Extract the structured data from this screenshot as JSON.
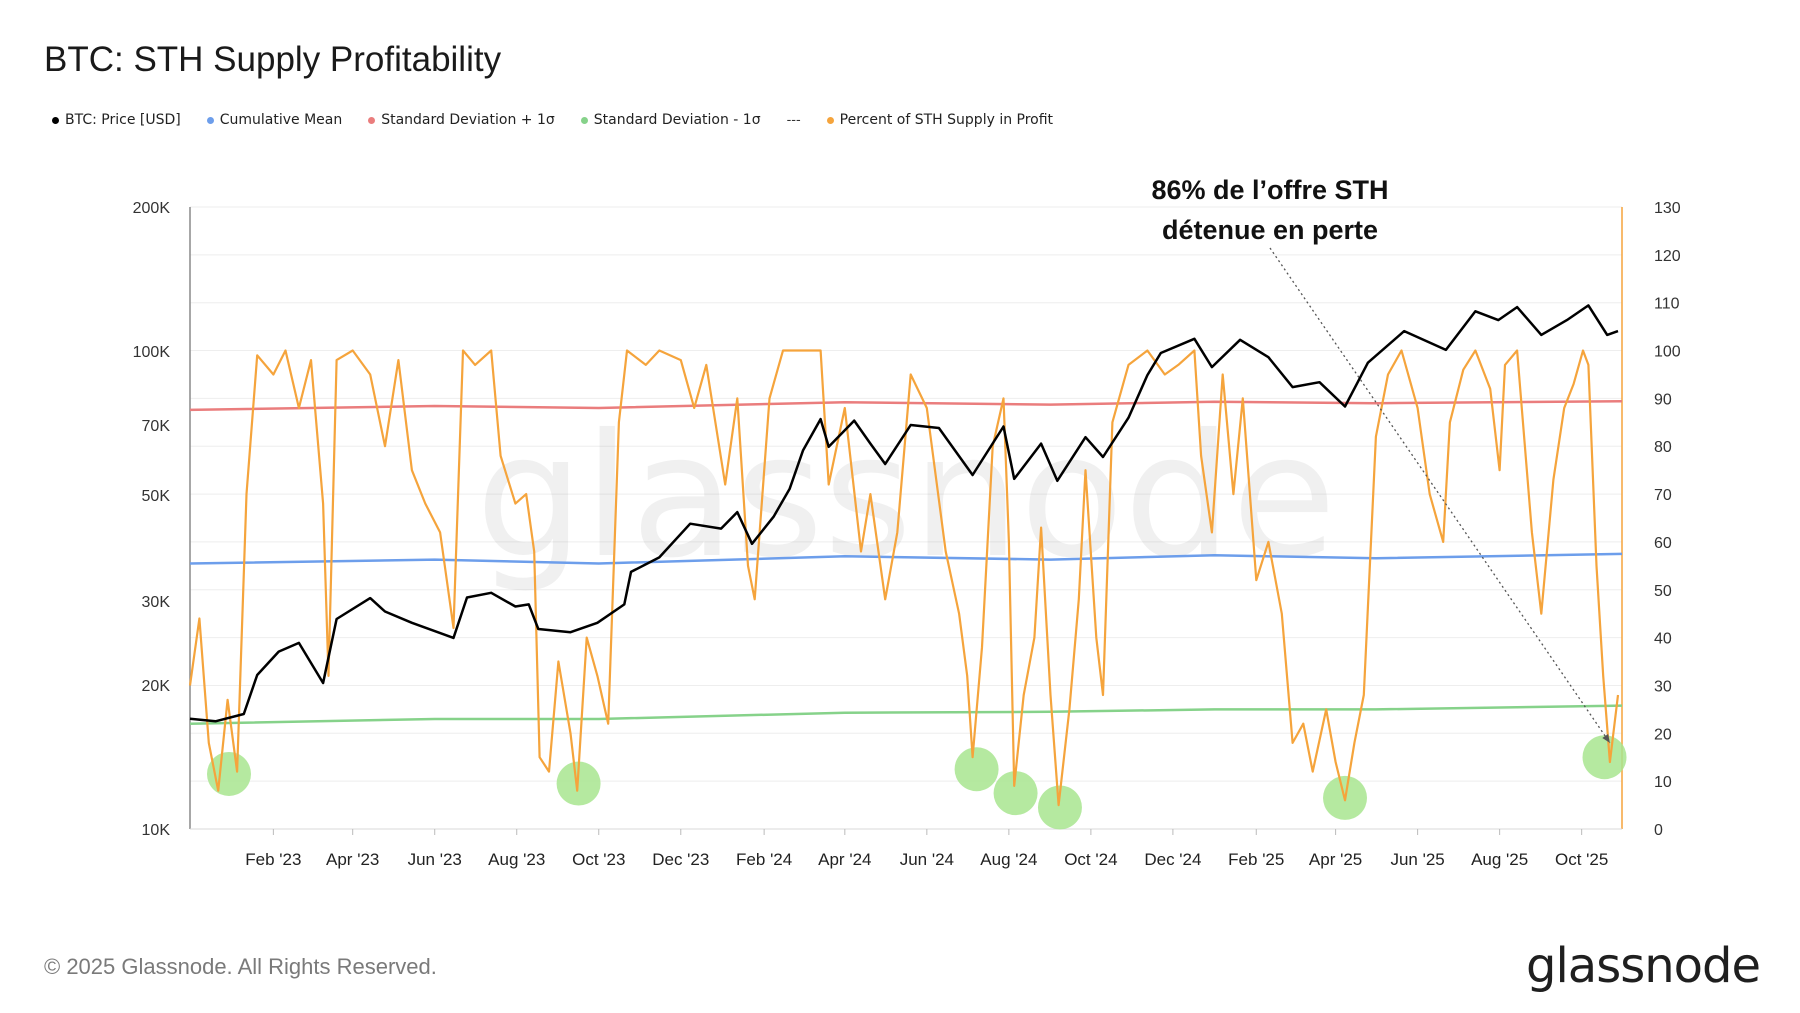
{
  "title": "BTC: STH Supply Profitability",
  "legend": [
    {
      "label": "BTC: Price [USD]",
      "color": "#000000"
    },
    {
      "label": "Cumulative Mean",
      "color": "#6d9eeb"
    },
    {
      "label": "Standard Deviation + 1σ",
      "color": "#ea7d7d"
    },
    {
      "label": "Standard Deviation - 1σ",
      "color": "#86d28a"
    },
    {
      "label": "Percent of STH Supply in Profit",
      "color": "#f5a43c"
    }
  ],
  "legend_separator": "---",
  "annotation": {
    "line1": "86% de l’offre STH",
    "line2": "détenue en perte"
  },
  "watermark": "glassnode",
  "footer": "© 2025 Glassnode. All Rights Reserved.",
  "brand": "glassnode",
  "colors": {
    "price": "#000000",
    "mean": "#6d9eeb",
    "upper": "#ea7d7d",
    "lower": "#86d28a",
    "profit": "#f5a43c",
    "highlight": "#a8e58f"
  },
  "chart_data": {
    "type": "line",
    "title": "BTC: STH Supply Profitability",
    "x_ticks": [
      "Feb '23",
      "Apr '23",
      "Jun '23",
      "Aug '23",
      "Oct '23",
      "Dec '23",
      "Feb '24",
      "Apr '24",
      "Jun '24",
      "Aug '24",
      "Oct '24",
      "Dec '24",
      "Feb '25",
      "Apr '25",
      "Jun '25",
      "Aug '25",
      "Oct '25"
    ],
    "x_range": [
      "2022-12-01",
      "2025-10-31"
    ],
    "y_left": {
      "scale": "log",
      "ticks": [
        "10K",
        "20K",
        "30K",
        "50K",
        "70K",
        "100K",
        "200K"
      ],
      "tick_values": [
        10000,
        20000,
        30000,
        50000,
        70000,
        100000,
        200000
      ],
      "range": [
        10000,
        200000
      ]
    },
    "y_right": {
      "scale": "linear",
      "ticks": [
        "0",
        "10",
        "20",
        "30",
        "40",
        "50",
        "60",
        "70",
        "80",
        "90",
        "100",
        "110",
        "120",
        "130"
      ],
      "range": [
        0,
        130
      ]
    },
    "series": [
      {
        "name": "BTC: Price [USD]",
        "axis": "left",
        "points": [
          [
            "2022-12-01",
            17000
          ],
          [
            "2022-12-20",
            16800
          ],
          [
            "2023-01-10",
            17400
          ],
          [
            "2023-01-20",
            21000
          ],
          [
            "2023-02-05",
            23500
          ],
          [
            "2023-02-20",
            24500
          ],
          [
            "2023-03-10",
            20200
          ],
          [
            "2023-03-20",
            27500
          ],
          [
            "2023-04-14",
            30400
          ],
          [
            "2023-04-25",
            28500
          ],
          [
            "2023-05-15",
            27000
          ],
          [
            "2023-06-15",
            25100
          ],
          [
            "2023-06-25",
            30500
          ],
          [
            "2023-07-13",
            31200
          ],
          [
            "2023-07-31",
            29200
          ],
          [
            "2023-08-10",
            29500
          ],
          [
            "2023-08-17",
            26200
          ],
          [
            "2023-09-10",
            25800
          ],
          [
            "2023-09-30",
            27000
          ],
          [
            "2023-10-20",
            29500
          ],
          [
            "2023-10-25",
            34500
          ],
          [
            "2023-11-15",
            37000
          ],
          [
            "2023-12-08",
            43500
          ],
          [
            "2023-12-31",
            42500
          ],
          [
            "2024-01-12",
            46000
          ],
          [
            "2024-01-23",
            39500
          ],
          [
            "2024-02-08",
            45000
          ],
          [
            "2024-02-20",
            51500
          ],
          [
            "2024-03-01",
            62000
          ],
          [
            "2024-03-14",
            72000
          ],
          [
            "2024-03-20",
            63000
          ],
          [
            "2024-04-08",
            71500
          ],
          [
            "2024-04-20",
            64000
          ],
          [
            "2024-05-01",
            58000
          ],
          [
            "2024-05-20",
            70000
          ],
          [
            "2024-06-10",
            69000
          ],
          [
            "2024-07-05",
            55000
          ],
          [
            "2024-07-28",
            69500
          ],
          [
            "2024-08-05",
            54000
          ],
          [
            "2024-08-25",
            64000
          ],
          [
            "2024-09-06",
            53500
          ],
          [
            "2024-09-27",
            66000
          ],
          [
            "2024-10-10",
            60000
          ],
          [
            "2024-10-29",
            72500
          ],
          [
            "2024-11-12",
            89000
          ],
          [
            "2024-11-22",
            99000
          ],
          [
            "2024-12-17",
            106000
          ],
          [
            "2024-12-30",
            92500
          ],
          [
            "2025-01-20",
            105500
          ],
          [
            "2025-02-10",
            97000
          ],
          [
            "2025-02-28",
            84000
          ],
          [
            "2025-03-20",
            86000
          ],
          [
            "2025-04-08",
            76500
          ],
          [
            "2025-04-25",
            94500
          ],
          [
            "2025-05-22",
            110000
          ],
          [
            "2025-06-22",
            100500
          ],
          [
            "2025-07-14",
            121000
          ],
          [
            "2025-07-31",
            116000
          ],
          [
            "2025-08-14",
            123500
          ],
          [
            "2025-09-01",
            108000
          ],
          [
            "2025-09-20",
            116000
          ],
          [
            "2025-10-06",
            124500
          ],
          [
            "2025-10-20",
            108000
          ],
          [
            "2025-10-28",
            110000
          ]
        ]
      },
      {
        "name": "Cumulative Mean",
        "axis": "right",
        "points": [
          [
            "2022-12-01",
            55.5
          ],
          [
            "2023-06-01",
            56.3
          ],
          [
            "2023-10-01",
            55.5
          ],
          [
            "2024-04-01",
            57.0
          ],
          [
            "2024-09-01",
            56.3
          ],
          [
            "2025-01-01",
            57.2
          ],
          [
            "2025-05-01",
            56.6
          ],
          [
            "2025-10-31",
            57.5
          ]
        ]
      },
      {
        "name": "Standard Deviation + 1σ",
        "axis": "right",
        "points": [
          [
            "2022-12-01",
            87.6
          ],
          [
            "2023-06-01",
            88.4
          ],
          [
            "2023-10-01",
            88.0
          ],
          [
            "2024-04-01",
            89.2
          ],
          [
            "2024-09-01",
            88.7
          ],
          [
            "2025-01-01",
            89.3
          ],
          [
            "2025-05-01",
            89.0
          ],
          [
            "2025-10-31",
            89.4
          ]
        ]
      },
      {
        "name": "Standard Deviation - 1σ",
        "axis": "right",
        "points": [
          [
            "2022-12-01",
            22.0
          ],
          [
            "2023-06-01",
            23.0
          ],
          [
            "2023-10-01",
            23.0
          ],
          [
            "2024-04-01",
            24.3
          ],
          [
            "2024-09-01",
            24.5
          ],
          [
            "2025-01-01",
            25.0
          ],
          [
            "2025-05-01",
            25.0
          ],
          [
            "2025-10-31",
            25.8
          ]
        ]
      },
      {
        "name": "Percent of STH Supply in Profit",
        "axis": "right",
        "points": [
          [
            "2022-12-01",
            30
          ],
          [
            "2022-12-08",
            44
          ],
          [
            "2022-12-15",
            18
          ],
          [
            "2022-12-22",
            8
          ],
          [
            "2022-12-29",
            27
          ],
          [
            "2023-01-05",
            12
          ],
          [
            "2023-01-12",
            70
          ],
          [
            "2023-01-20",
            99
          ],
          [
            "2023-02-01",
            95
          ],
          [
            "2023-02-10",
            100
          ],
          [
            "2023-02-20",
            88
          ],
          [
            "2023-03-01",
            98
          ],
          [
            "2023-03-10",
            68
          ],
          [
            "2023-03-14",
            32
          ],
          [
            "2023-03-20",
            98
          ],
          [
            "2023-04-01",
            100
          ],
          [
            "2023-04-14",
            95
          ],
          [
            "2023-04-25",
            80
          ],
          [
            "2023-05-05",
            98
          ],
          [
            "2023-05-15",
            75
          ],
          [
            "2023-05-25",
            68
          ],
          [
            "2023-06-05",
            62
          ],
          [
            "2023-06-15",
            42
          ],
          [
            "2023-06-22",
            100
          ],
          [
            "2023-07-01",
            97
          ],
          [
            "2023-07-13",
            100
          ],
          [
            "2023-07-20",
            78
          ],
          [
            "2023-07-31",
            68
          ],
          [
            "2023-08-08",
            70
          ],
          [
            "2023-08-14",
            58
          ],
          [
            "2023-08-18",
            15
          ],
          [
            "2023-08-25",
            12
          ],
          [
            "2023-09-01",
            35
          ],
          [
            "2023-09-10",
            20
          ],
          [
            "2023-09-15",
            8
          ],
          [
            "2023-09-22",
            40
          ],
          [
            "2023-09-30",
            32
          ],
          [
            "2023-10-08",
            22
          ],
          [
            "2023-10-16",
            85
          ],
          [
            "2023-10-22",
            100
          ],
          [
            "2023-11-05",
            97
          ],
          [
            "2023-11-15",
            100
          ],
          [
            "2023-12-01",
            98
          ],
          [
            "2023-12-11",
            88
          ],
          [
            "2023-12-20",
            97
          ],
          [
            "2024-01-03",
            72
          ],
          [
            "2024-01-12",
            90
          ],
          [
            "2024-01-20",
            55
          ],
          [
            "2024-01-25",
            48
          ],
          [
            "2024-02-05",
            90
          ],
          [
            "2024-02-15",
            100
          ],
          [
            "2024-03-01",
            100
          ],
          [
            "2024-03-14",
            100
          ],
          [
            "2024-03-20",
            72
          ],
          [
            "2024-04-01",
            88
          ],
          [
            "2024-04-13",
            58
          ],
          [
            "2024-04-20",
            70
          ],
          [
            "2024-05-01",
            48
          ],
          [
            "2024-05-10",
            62
          ],
          [
            "2024-05-20",
            95
          ],
          [
            "2024-06-01",
            88
          ],
          [
            "2024-06-15",
            58
          ],
          [
            "2024-06-25",
            45
          ],
          [
            "2024-07-01",
            32
          ],
          [
            "2024-07-05",
            15
          ],
          [
            "2024-07-12",
            38
          ],
          [
            "2024-07-20",
            80
          ],
          [
            "2024-07-28",
            90
          ],
          [
            "2024-08-01",
            60
          ],
          [
            "2024-08-05",
            9
          ],
          [
            "2024-08-12",
            28
          ],
          [
            "2024-08-20",
            40
          ],
          [
            "2024-08-25",
            63
          ],
          [
            "2024-09-01",
            28
          ],
          [
            "2024-09-07",
            5
          ],
          [
            "2024-09-15",
            25
          ],
          [
            "2024-09-22",
            48
          ],
          [
            "2024-09-27",
            75
          ],
          [
            "2024-10-05",
            40
          ],
          [
            "2024-10-10",
            28
          ],
          [
            "2024-10-17",
            85
          ],
          [
            "2024-10-29",
            97
          ],
          [
            "2024-11-12",
            100
          ],
          [
            "2024-11-25",
            95
          ],
          [
            "2024-12-05",
            97
          ],
          [
            "2024-12-17",
            100
          ],
          [
            "2024-12-22",
            78
          ],
          [
            "2024-12-30",
            62
          ],
          [
            "2025-01-07",
            95
          ],
          [
            "2025-01-15",
            70
          ],
          [
            "2025-01-22",
            90
          ],
          [
            "2025-02-01",
            52
          ],
          [
            "2025-02-10",
            60
          ],
          [
            "2025-02-20",
            45
          ],
          [
            "2025-02-28",
            18
          ],
          [
            "2025-03-08",
            22
          ],
          [
            "2025-03-15",
            12
          ],
          [
            "2025-03-25",
            25
          ],
          [
            "2025-04-01",
            14
          ],
          [
            "2025-04-08",
            6
          ],
          [
            "2025-04-15",
            18
          ],
          [
            "2025-04-22",
            28
          ],
          [
            "2025-05-01",
            82
          ],
          [
            "2025-05-10",
            95
          ],
          [
            "2025-05-20",
            100
          ],
          [
            "2025-06-01",
            88
          ],
          [
            "2025-06-10",
            70
          ],
          [
            "2025-06-20",
            60
          ],
          [
            "2025-06-25",
            85
          ],
          [
            "2025-07-05",
            96
          ],
          [
            "2025-07-14",
            100
          ],
          [
            "2025-07-25",
            92
          ],
          [
            "2025-08-01",
            75
          ],
          [
            "2025-08-05",
            97
          ],
          [
            "2025-08-14",
            100
          ],
          [
            "2025-08-25",
            62
          ],
          [
            "2025-09-01",
            45
          ],
          [
            "2025-09-10",
            73
          ],
          [
            "2025-09-18",
            88
          ],
          [
            "2025-09-25",
            93
          ],
          [
            "2025-10-02",
            100
          ],
          [
            "2025-10-06",
            97
          ],
          [
            "2025-10-12",
            55
          ],
          [
            "2025-10-17",
            32
          ],
          [
            "2025-10-22",
            14
          ],
          [
            "2025-10-28",
            28
          ]
        ]
      }
    ],
    "highlights": [
      {
        "x": "2022-12-30",
        "y": 11.5
      },
      {
        "x": "2023-09-16",
        "y": 9.5
      },
      {
        "x": "2024-07-08",
        "y": 12.5
      },
      {
        "x": "2024-08-06",
        "y": 7.5
      },
      {
        "x": "2024-09-08",
        "y": 4.5
      },
      {
        "x": "2025-04-08",
        "y": 6.5
      },
      {
        "x": "2025-10-18",
        "y": 15
      }
    ],
    "annotation_target": {
      "x": "2025-10-22",
      "y": 18
    },
    "grid": true,
    "legend_position": "top-left"
  }
}
